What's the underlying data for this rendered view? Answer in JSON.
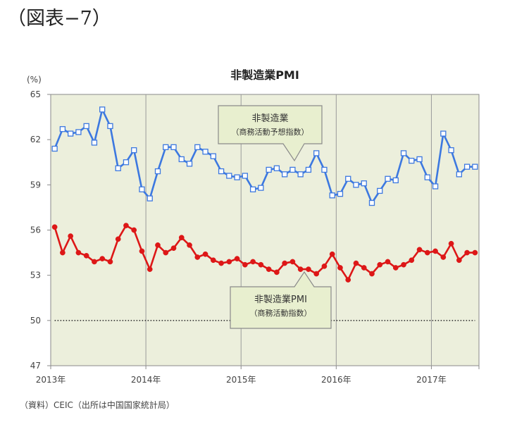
{
  "figure_label": "（図表−7）",
  "source_note": "（資料）CEIC（出所は中国国家統計局）",
  "colors": {
    "plot_bg": "#ecefdc",
    "services_line": "#3c78e0",
    "manufacturing_line": "#dd1717",
    "callout_bg": "#e8efcf",
    "callout_border": "#8a8a8a"
  },
  "chart_data": {
    "type": "line",
    "title": "非製造業PMI",
    "ylabel": "(%)",
    "xlabel": "",
    "ylim": [
      47,
      65
    ],
    "yticks": [
      47,
      50,
      53,
      56,
      59,
      62,
      65
    ],
    "grid": "vertical lines at year boundaries",
    "x_labels": [
      "2013年",
      "2014年",
      "2015年",
      "2016年",
      "2017年"
    ],
    "x_periods": [
      "2013-01",
      "2013-02",
      "2013-03",
      "2013-04",
      "2013-05",
      "2013-06",
      "2013-07",
      "2013-08",
      "2013-09",
      "2013-10",
      "2013-11",
      "2013-12",
      "2014-01",
      "2014-02",
      "2014-03",
      "2014-04",
      "2014-05",
      "2014-06",
      "2014-07",
      "2014-08",
      "2014-09",
      "2014-10",
      "2014-11",
      "2014-12",
      "2015-01",
      "2015-02",
      "2015-03",
      "2015-04",
      "2015-05",
      "2015-06",
      "2015-07",
      "2015-08",
      "2015-09",
      "2015-10",
      "2015-11",
      "2015-12",
      "2016-01",
      "2016-02",
      "2016-03",
      "2016-04",
      "2016-05",
      "2016-06",
      "2016-07",
      "2016-08",
      "2016-09",
      "2016-10",
      "2016-11",
      "2016-12",
      "2017-01",
      "2017-02",
      "2017-03",
      "2017-04",
      "2017-05",
      "2017-06"
    ],
    "reference_line": {
      "value": 50,
      "style": "dotted"
    },
    "series": [
      {
        "name": "非製造業",
        "callout_lines": [
          "非製造業",
          "（商務活動予想指数）"
        ],
        "marker": "square",
        "values": [
          61.4,
          62.7,
          62.4,
          62.5,
          62.9,
          61.8,
          64.0,
          62.9,
          60.1,
          60.5,
          61.3,
          58.7,
          58.1,
          59.9,
          61.5,
          61.5,
          60.7,
          60.4,
          61.5,
          61.2,
          60.9,
          59.9,
          59.6,
          59.5,
          59.6,
          58.7,
          58.8,
          60.0,
          60.1,
          59.7,
          60.0,
          59.7,
          60.0,
          61.1,
          60.0,
          58.3,
          58.4,
          59.4,
          59.0,
          59.1,
          57.8,
          58.6,
          59.4,
          59.3,
          61.1,
          60.6,
          60.7,
          59.5,
          58.9,
          62.4,
          61.3,
          59.7,
          60.2,
          60.2
        ]
      },
      {
        "name": "非製造業PMI",
        "callout_lines": [
          "非製造業PMI",
          "（商務活動指数）"
        ],
        "marker": "circle",
        "values": [
          56.2,
          54.5,
          55.6,
          54.5,
          54.3,
          53.9,
          54.1,
          53.9,
          55.4,
          56.3,
          56.0,
          54.6,
          53.4,
          55.0,
          54.5,
          54.8,
          55.5,
          55.0,
          54.2,
          54.4,
          54.0,
          53.8,
          53.9,
          54.1,
          53.7,
          53.9,
          53.7,
          53.4,
          53.2,
          53.8,
          53.9,
          53.4,
          53.4,
          53.1,
          53.6,
          54.4,
          53.5,
          52.7,
          53.8,
          53.5,
          53.1,
          53.7,
          53.9,
          53.5,
          53.7,
          54.0,
          54.7,
          54.5,
          54.6,
          54.2,
          55.1,
          54.0,
          54.5,
          54.5
        ]
      }
    ]
  }
}
